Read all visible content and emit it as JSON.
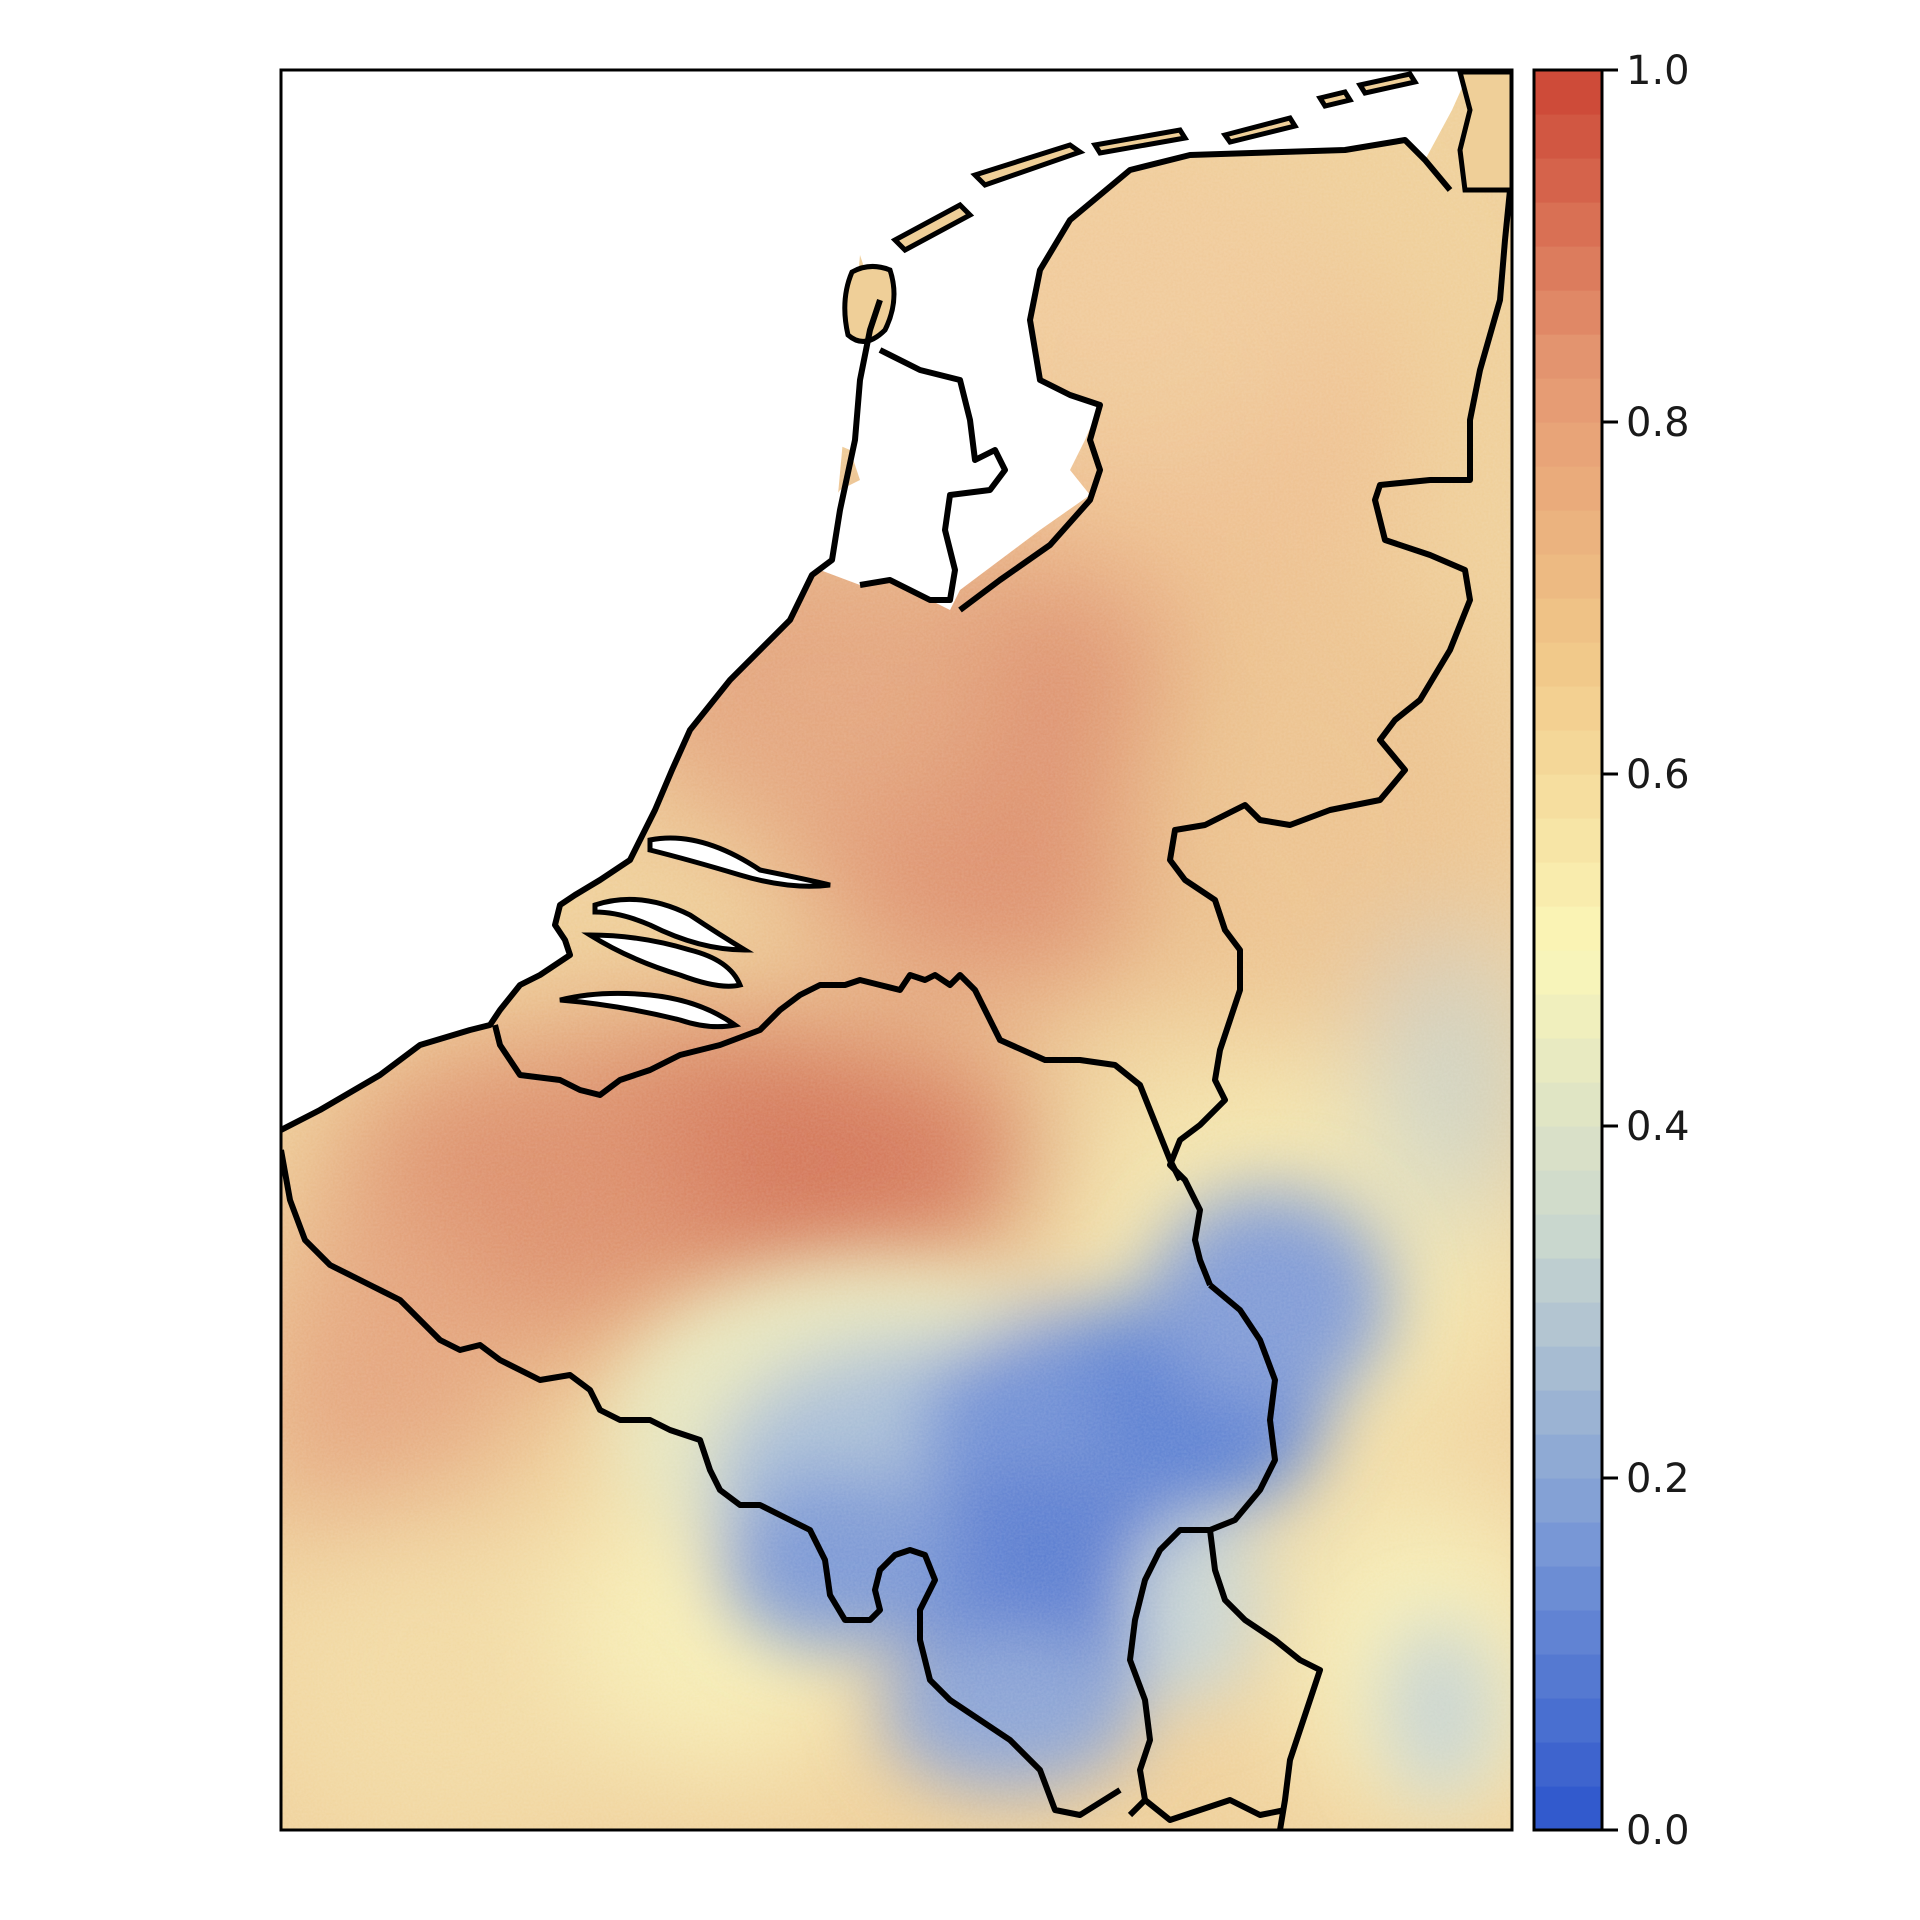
{
  "map": {
    "type": "heatmap",
    "region": "Benelux",
    "projection": "geographic",
    "panel_border": true,
    "sea_color": "#ffffff",
    "border_color": "#000000",
    "pattern": [
      {
        "area": "Netherlands",
        "level": "high",
        "approx_value": 0.72
      },
      {
        "area": "Flanders (northern Belgium)",
        "level": "high",
        "approx_value": 0.78
      },
      {
        "area": "Wallonia / Ardennes",
        "level": "low",
        "approx_value": 0.15
      },
      {
        "area": "Luxembourg",
        "level": "medium-low",
        "approx_value": 0.35
      },
      {
        "area": "Northern France",
        "level": "medium-high",
        "approx_value": 0.62
      },
      {
        "area": "Western Germany",
        "level": "medium",
        "approx_value": 0.55
      },
      {
        "area": "Eifel (Germany)",
        "level": "low-medium",
        "approx_value": 0.3
      }
    ]
  },
  "colorbar": {
    "min": 0.0,
    "max": 1.0,
    "orientation": "vertical",
    "position": "right",
    "steps": 40,
    "colors": [
      "#2c55cc",
      "#7a99d6",
      "#c8d6cf",
      "#fbf6b8",
      "#f1c889",
      "#e49671",
      "#cc4534"
    ],
    "tick_values": [
      0.0,
      0.2,
      0.4,
      0.6,
      0.8,
      1.0
    ],
    "tick_labels": [
      "0.0",
      "0.2",
      "0.4",
      "0.6",
      "0.8",
      "1.0"
    ]
  }
}
